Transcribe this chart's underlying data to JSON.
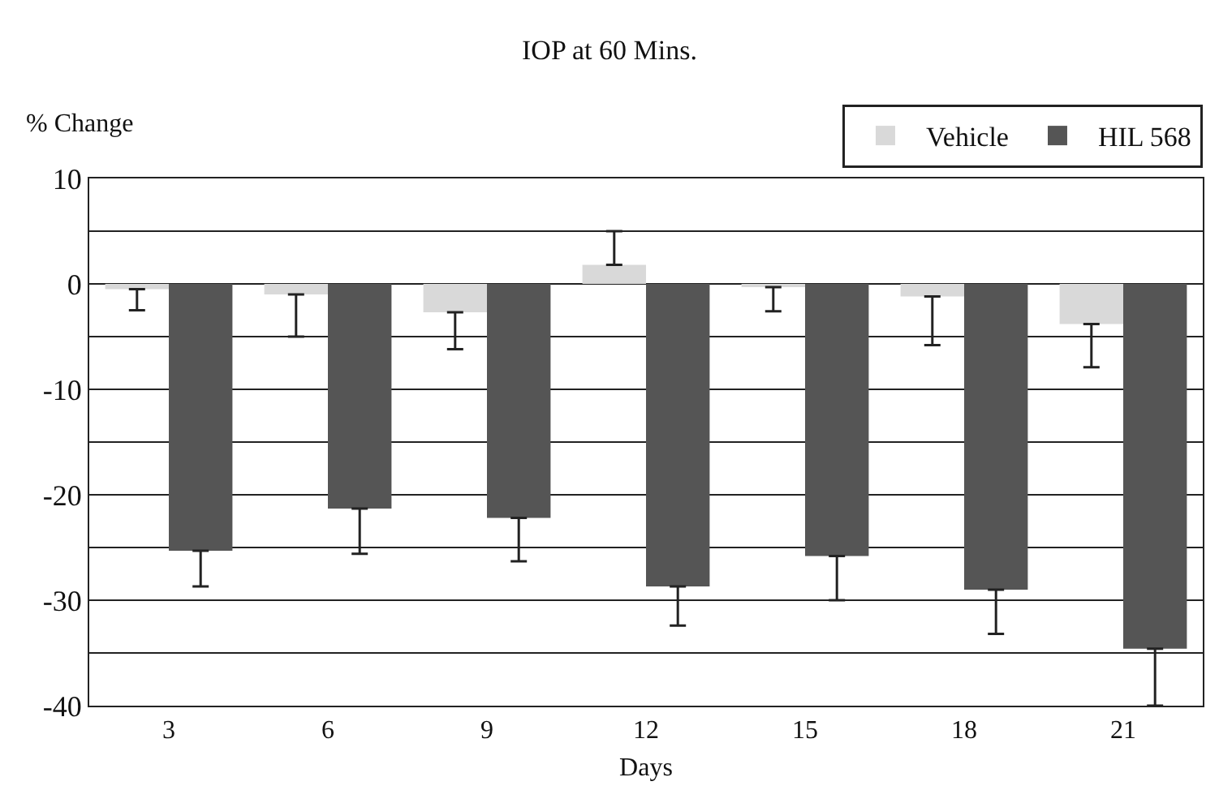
{
  "chart_data": {
    "type": "bar",
    "title": "IOP at 60 Mins.",
    "xlabel": "Days",
    "ylabel": "% Change",
    "categories": [
      "3",
      "6",
      "9",
      "12",
      "15",
      "18",
      "21"
    ],
    "series": [
      {
        "name": "Vehicle",
        "color": "#d9d9d9",
        "values": [
          -0.5,
          -1,
          -2.7,
          1.8,
          -0.3,
          -1.2,
          -3.8
        ],
        "errors": [
          [
            -2.5,
            -0.5
          ],
          [
            -5,
            -1
          ],
          [
            -6.2,
            -2.7
          ],
          [
            1.8,
            5
          ],
          [
            -2.6,
            -0.3
          ],
          [
            -5.8,
            -1.2
          ],
          [
            -7.9,
            -3.8
          ]
        ]
      },
      {
        "name": "HIL 568",
        "color": "#555555",
        "values": [
          -25.3,
          -21.3,
          -22.2,
          -28.7,
          -25.8,
          -29,
          -34.6
        ],
        "errors": [
          [
            -28.7,
            -25.3
          ],
          [
            -25.6,
            -21.3
          ],
          [
            -26.3,
            -22.2
          ],
          [
            -32.4,
            -28.7
          ],
          [
            -30,
            -25.8
          ],
          [
            -33.2,
            -29
          ],
          [
            -40,
            -34.6
          ]
        ]
      }
    ],
    "ylim": [
      -40,
      10
    ],
    "yticks": [
      -40,
      {
        "value": -35,
        "label": null
      },
      -30,
      {
        "value": -25,
        "label": null
      },
      -20,
      {
        "value": -15,
        "label": null
      },
      -10,
      {
        "value": -5,
        "label": null
      },
      0,
      {
        "value": 5,
        "label": null
      },
      10
    ],
    "grid": "y",
    "legend": "top right"
  }
}
